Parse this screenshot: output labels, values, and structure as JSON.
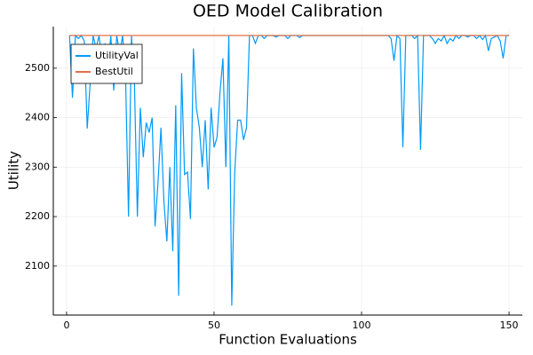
{
  "chart_data": {
    "type": "line",
    "title": "OED Model Calibration",
    "x_label": "Function Evaluations",
    "y_label": "Utility",
    "x": [
      1,
      2,
      3,
      4,
      5,
      6,
      7,
      8,
      9,
      10,
      11,
      12,
      13,
      14,
      15,
      16,
      17,
      18,
      19,
      20,
      21,
      22,
      23,
      24,
      25,
      26,
      27,
      28,
      29,
      30,
      31,
      32,
      33,
      34,
      35,
      36,
      37,
      38,
      39,
      40,
      41,
      42,
      43,
      44,
      45,
      46,
      47,
      48,
      49,
      50,
      51,
      52,
      53,
      54,
      55,
      56,
      57,
      58,
      59,
      60,
      61,
      62,
      63,
      64,
      65,
      66,
      67,
      68,
      69,
      70,
      71,
      72,
      73,
      74,
      75,
      76,
      77,
      78,
      79,
      80,
      81,
      82,
      83,
      84,
      85,
      86,
      87,
      88,
      89,
      90,
      91,
      92,
      93,
      94,
      95,
      96,
      97,
      98,
      99,
      100,
      101,
      102,
      103,
      104,
      105,
      106,
      107,
      108,
      109,
      110,
      111,
      112,
      113,
      114,
      115,
      116,
      117,
      118,
      119,
      120,
      121,
      122,
      123,
      124,
      125,
      126,
      127,
      128,
      129,
      130,
      131,
      132,
      133,
      134,
      135,
      136,
      137,
      138,
      139,
      140,
      141,
      142,
      143,
      144,
      145,
      146,
      147,
      148,
      149,
      150
    ],
    "series": [
      {
        "name": "UtilityVal",
        "color": "#009af9",
        "values": [
          2566,
          2440,
          2566,
          2560,
          2566,
          2555,
          2378,
          2470,
          2566,
          2540,
          2566,
          2520,
          2550,
          2500,
          2566,
          2455,
          2566,
          2530,
          2566,
          2480,
          2200,
          2566,
          2470,
          2200,
          2420,
          2320,
          2390,
          2370,
          2400,
          2180,
          2270,
          2380,
          2230,
          2150,
          2300,
          2130,
          2425,
          2040,
          2490,
          2285,
          2290,
          2195,
          2540,
          2420,
          2380,
          2300,
          2395,
          2255,
          2420,
          2340,
          2360,
          2450,
          2520,
          2300,
          2566,
          2020,
          2290,
          2395,
          2395,
          2355,
          2380,
          2566,
          2566,
          2550,
          2566,
          2566,
          2560,
          2566,
          2566,
          2566,
          2563,
          2566,
          2566,
          2566,
          2560,
          2566,
          2566,
          2566,
          2562,
          2566,
          2566,
          2566,
          2566,
          2566,
          2566,
          2566,
          2566,
          2566,
          2566,
          2566,
          2566,
          2566,
          2566,
          2566,
          2566,
          2566,
          2566,
          2566,
          2566,
          2566,
          2566,
          2566,
          2566,
          2566,
          2566,
          2566,
          2566,
          2566,
          2566,
          2560,
          2515,
          2566,
          2560,
          2340,
          2566,
          2566,
          2566,
          2560,
          2566,
          2335,
          2566,
          2566,
          2566,
          2560,
          2550,
          2560,
          2555,
          2566,
          2550,
          2560,
          2555,
          2566,
          2560,
          2566,
          2566,
          2563,
          2566,
          2566,
          2560,
          2566,
          2558,
          2566,
          2535,
          2560,
          2563,
          2566,
          2555,
          2520,
          2566,
          2566
        ]
      },
      {
        "name": "BestUtil",
        "color": "#e26f46",
        "values": [
          2566,
          2566,
          2566,
          2566,
          2566,
          2566,
          2566,
          2566,
          2566,
          2566,
          2566,
          2566,
          2566,
          2566,
          2566,
          2566,
          2566,
          2566,
          2566,
          2566,
          2566,
          2566,
          2566,
          2566,
          2566,
          2566,
          2566,
          2566,
          2566,
          2566,
          2566,
          2566,
          2566,
          2566,
          2566,
          2566,
          2566,
          2566,
          2566,
          2566,
          2566,
          2566,
          2566,
          2566,
          2566,
          2566,
          2566,
          2566,
          2566,
          2566,
          2566,
          2566,
          2566,
          2566,
          2566,
          2566,
          2566,
          2566,
          2566,
          2566,
          2566,
          2566,
          2566,
          2566,
          2566,
          2566,
          2566,
          2566,
          2566,
          2566,
          2566,
          2566,
          2566,
          2566,
          2566,
          2566,
          2566,
          2566,
          2566,
          2566,
          2566,
          2566,
          2566,
          2566,
          2566,
          2566,
          2566,
          2566,
          2566,
          2566,
          2566,
          2566,
          2566,
          2566,
          2566,
          2566,
          2566,
          2566,
          2566,
          2566,
          2566,
          2566,
          2566,
          2566,
          2566,
          2566,
          2566,
          2566,
          2566,
          2566,
          2566,
          2566,
          2566,
          2566,
          2566,
          2566,
          2566,
          2566,
          2566,
          2566,
          2566,
          2566,
          2566,
          2566,
          2566,
          2566,
          2566,
          2566,
          2566,
          2566,
          2566,
          2566,
          2566,
          2566,
          2566,
          2566,
          2566,
          2566,
          2566,
          2566,
          2566,
          2566,
          2566,
          2566,
          2566,
          2566,
          2566,
          2566,
          2566,
          2566
        ]
      }
    ],
    "xlim": [
      -4.5,
      154.5
    ],
    "xticks": [
      0,
      50,
      100,
      150
    ],
    "ylim": [
      2001,
      2584
    ],
    "yticks": [
      2100,
      2200,
      2300,
      2400,
      2500
    ],
    "grid": true,
    "legend": "top-left"
  }
}
